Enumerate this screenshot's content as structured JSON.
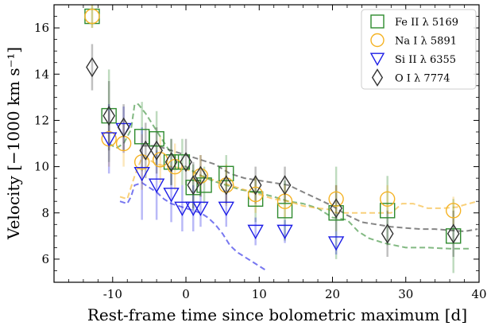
{
  "chart_data": {
    "type": "scatter",
    "title": "",
    "xlabel": "Rest-frame time since bolometric maximum [d]",
    "ylabel": "Velocity [−1000 km s⁻¹]",
    "xlim": [
      -18,
      40
    ],
    "ylim": [
      5,
      17
    ],
    "x_ticks": [
      -10,
      0,
      10,
      20,
      30,
      40
    ],
    "y_ticks": [
      6,
      8,
      10,
      12,
      14,
      16
    ],
    "grid": false,
    "legend_position": "top-right",
    "colors": {
      "fe": "#2e8b2e",
      "na": "#f5b324",
      "si": "#1c1ce6",
      "o": "#333333"
    },
    "series": [
      {
        "name": "Fe II λ 5169",
        "key": "fe",
        "marker": "square",
        "points": [
          {
            "x": -12.8,
            "y": 16.5,
            "err": 0.5
          },
          {
            "x": -10.5,
            "y": 12.2,
            "err": 2.0
          },
          {
            "x": -6.0,
            "y": 11.3,
            "err": 1.5
          },
          {
            "x": -4.0,
            "y": 11.2,
            "err": 1.2
          },
          {
            "x": -2.0,
            "y": 10.2,
            "err": 1.0
          },
          {
            "x": -0.5,
            "y": 10.2,
            "err": 1.0
          },
          {
            "x": 1.0,
            "y": 9.1,
            "err": 1.0
          },
          {
            "x": 2.5,
            "y": 9.2,
            "err": 0.8
          },
          {
            "x": 5.5,
            "y": 9.7,
            "err": 0.8
          },
          {
            "x": 9.5,
            "y": 8.6,
            "err": 1.0
          },
          {
            "x": 13.5,
            "y": 8.1,
            "err": 1.3
          },
          {
            "x": 20.5,
            "y": 8.0,
            "err": 2.0
          },
          {
            "x": 27.5,
            "y": 8.1,
            "err": 1.5
          },
          {
            "x": 36.5,
            "y": 7.0,
            "err": 1.6
          }
        ],
        "curve": [
          [
            -10.5,
            11.0
          ],
          [
            -9.5,
            10.8
          ],
          [
            -8.5,
            11.0
          ],
          [
            -7.5,
            11.6
          ],
          [
            -7.0,
            12.7
          ],
          [
            -6.5,
            12.7
          ],
          [
            -5.5,
            12.3
          ],
          [
            -4.5,
            11.8
          ],
          [
            -3.5,
            11.3
          ],
          [
            -2.5,
            10.8
          ],
          [
            -1.5,
            10.4
          ],
          [
            -0.5,
            10.1
          ],
          [
            0.5,
            9.9
          ],
          [
            1.5,
            9.7
          ],
          [
            3.5,
            9.4
          ],
          [
            5.5,
            9.2
          ],
          [
            7.5,
            9.0
          ],
          [
            9.5,
            8.9
          ],
          [
            12.0,
            8.7
          ],
          [
            14.0,
            8.5
          ],
          [
            16.0,
            8.4
          ],
          [
            18.0,
            8.2
          ],
          [
            20.0,
            7.8
          ],
          [
            22.0,
            7.7
          ],
          [
            23.5,
            7.2
          ],
          [
            25.0,
            6.9
          ],
          [
            27.0,
            6.7
          ],
          [
            30.0,
            6.5
          ],
          [
            33.0,
            6.5
          ],
          [
            36.0,
            6.45
          ],
          [
            39.0,
            6.45
          ]
        ]
      },
      {
        "name": "Na I λ 5891",
        "key": "na",
        "marker": "circle",
        "points": [
          {
            "x": -12.8,
            "y": 16.5,
            "err": 0.5
          },
          {
            "x": -10.5,
            "y": 11.2,
            "err": 1.2
          },
          {
            "x": -8.5,
            "y": 11.0,
            "err": 1.0
          },
          {
            "x": -6.0,
            "y": 10.2,
            "err": 1.2
          },
          {
            "x": -3.5,
            "y": 10.3,
            "err": 1.0
          },
          {
            "x": -1.5,
            "y": 10.0,
            "err": 1.0
          },
          {
            "x": 2.0,
            "y": 9.6,
            "err": 0.9
          },
          {
            "x": 5.5,
            "y": 9.2,
            "err": 0.9
          },
          {
            "x": 9.5,
            "y": 8.8,
            "err": 0.8
          },
          {
            "x": 13.5,
            "y": 8.5,
            "err": 0.7
          },
          {
            "x": 20.5,
            "y": 8.6,
            "err": 0.6
          },
          {
            "x": 27.5,
            "y": 8.6,
            "err": 0.6
          },
          {
            "x": 36.5,
            "y": 8.1,
            "err": 0.6
          }
        ],
        "curve": [
          [
            -9.0,
            8.7
          ],
          [
            -8.0,
            8.6
          ],
          [
            -7.0,
            9.6
          ],
          [
            -6.0,
            10.4
          ],
          [
            -5.0,
            10.3
          ],
          [
            -4.0,
            10.1
          ],
          [
            -2.0,
            10.0
          ],
          [
            0.0,
            9.9
          ],
          [
            2.0,
            9.6
          ],
          [
            4.0,
            9.4
          ],
          [
            6.0,
            9.2
          ],
          [
            8.0,
            9.0
          ],
          [
            10.0,
            8.8
          ],
          [
            12.0,
            8.6
          ],
          [
            14.0,
            8.5
          ],
          [
            16.0,
            8.3
          ],
          [
            18.0,
            8.2
          ],
          [
            19.5,
            8.15
          ],
          [
            20.5,
            8.0
          ],
          [
            22.0,
            8.0
          ],
          [
            24.0,
            8.0
          ],
          [
            26.0,
            8.0
          ],
          [
            28.0,
            8.0
          ],
          [
            29.5,
            8.4
          ],
          [
            31.0,
            8.4
          ],
          [
            33.0,
            8.2
          ],
          [
            35.0,
            8.2
          ],
          [
            37.0,
            8.25
          ],
          [
            38.0,
            8.35
          ],
          [
            39.8,
            8.5
          ]
        ]
      },
      {
        "name": "Si II λ 6355",
        "key": "si",
        "marker": "triangle-down",
        "points": [
          {
            "x": -10.5,
            "y": 11.2,
            "err": 1.5
          },
          {
            "x": -8.5,
            "y": 11.6,
            "err": 1.0
          },
          {
            "x": -6.0,
            "y": 9.7,
            "err": 2.0
          },
          {
            "x": -4.0,
            "y": 9.2,
            "err": 1.5
          },
          {
            "x": -2.0,
            "y": 8.8,
            "err": 1.2
          },
          {
            "x": -0.5,
            "y": 8.2,
            "err": 1.0
          },
          {
            "x": 1.0,
            "y": 8.2,
            "err": 1.0
          },
          {
            "x": 2.0,
            "y": 8.2,
            "err": 0.8
          },
          {
            "x": 5.5,
            "y": 8.2,
            "err": 0.8
          },
          {
            "x": 9.5,
            "y": 7.2,
            "err": 0.6
          },
          {
            "x": 13.5,
            "y": 7.2,
            "err": 0.5
          },
          {
            "x": 20.5,
            "y": 6.7,
            "err": 0.5
          }
        ],
        "curve": [
          [
            -9.0,
            8.5
          ],
          [
            -8.0,
            8.4
          ],
          [
            -7.5,
            8.7
          ],
          [
            -7.0,
            9.2
          ],
          [
            -6.0,
            9.3
          ],
          [
            -5.0,
            9.1
          ],
          [
            -4.0,
            8.9
          ],
          [
            -3.0,
            8.6
          ],
          [
            -2.0,
            8.4
          ],
          [
            -1.0,
            8.3
          ],
          [
            0.0,
            8.2
          ],
          [
            1.0,
            8.1
          ],
          [
            2.0,
            8.0
          ],
          [
            3.0,
            7.8
          ],
          [
            4.0,
            7.5
          ],
          [
            5.0,
            7.1
          ],
          [
            6.0,
            6.6
          ],
          [
            7.0,
            6.3
          ],
          [
            8.0,
            6.1
          ],
          [
            9.0,
            5.9
          ],
          [
            10.0,
            5.7
          ],
          [
            11.0,
            5.5
          ]
        ]
      },
      {
        "name": "O I λ 7774",
        "key": "o",
        "marker": "diamond",
        "points": [
          {
            "x": -12.8,
            "y": 14.3,
            "err": 1.0
          },
          {
            "x": -10.5,
            "y": 12.2,
            "err": 1.5
          },
          {
            "x": -8.5,
            "y": 11.7,
            "err": 1.0
          },
          {
            "x": -5.5,
            "y": 10.7,
            "err": 1.2
          },
          {
            "x": -4.0,
            "y": 10.7,
            "err": 1.0
          },
          {
            "x": -2.0,
            "y": 10.2,
            "err": 1.0
          },
          {
            "x": 0.0,
            "y": 10.2,
            "err": 1.0
          },
          {
            "x": 1.0,
            "y": 9.2,
            "err": 1.0
          },
          {
            "x": 2.0,
            "y": 9.6,
            "err": 0.9
          },
          {
            "x": 5.5,
            "y": 9.2,
            "err": 0.8
          },
          {
            "x": 9.5,
            "y": 9.2,
            "err": 0.8
          },
          {
            "x": 13.5,
            "y": 9.2,
            "err": 0.8
          },
          {
            "x": 20.5,
            "y": 8.2,
            "err": 1.0
          },
          {
            "x": 27.5,
            "y": 7.1,
            "err": 1.0
          },
          {
            "x": 36.5,
            "y": 7.1,
            "err": 1.0
          }
        ],
        "curve": [
          [
            -6.0,
            10.9
          ],
          [
            -4.0,
            10.9
          ],
          [
            -2.0,
            10.7
          ],
          [
            0.0,
            10.5
          ],
          [
            2.0,
            10.3
          ],
          [
            4.0,
            10.1
          ],
          [
            6.0,
            9.7
          ],
          [
            8.0,
            9.5
          ],
          [
            10.0,
            9.4
          ],
          [
            12.0,
            9.3
          ],
          [
            14.0,
            9.2
          ],
          [
            16.0,
            8.9
          ],
          [
            18.0,
            8.6
          ],
          [
            20.0,
            8.3
          ],
          [
            22.0,
            7.9
          ],
          [
            24.0,
            7.6
          ],
          [
            26.0,
            7.5
          ],
          [
            28.0,
            7.4
          ],
          [
            30.0,
            7.35
          ],
          [
            32.0,
            7.3
          ],
          [
            34.0,
            7.3
          ],
          [
            36.0,
            7.25
          ],
          [
            38.0,
            7.2
          ],
          [
            39.8,
            7.3
          ]
        ]
      }
    ]
  }
}
